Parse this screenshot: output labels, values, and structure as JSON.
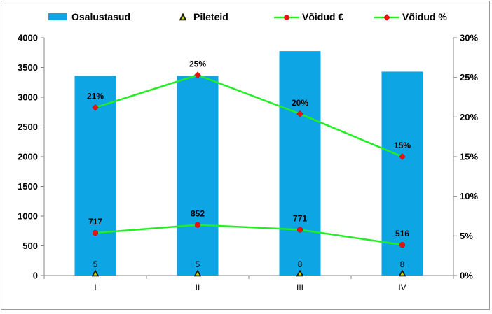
{
  "chart_data": {
    "type": "bar",
    "categories": [
      "I",
      "II",
      "III",
      "IV"
    ],
    "series": [
      {
        "name": "Osalustasud",
        "kind": "bar",
        "axis": "left",
        "color": "#0ea5e4",
        "values": [
          3360,
          3360,
          3775,
          3430
        ]
      },
      {
        "name": "Pileteid",
        "kind": "marker",
        "axis": "left",
        "color": "#000000",
        "values": [
          5,
          5,
          8,
          8
        ]
      },
      {
        "name": "Võidud €",
        "kind": "line",
        "axis": "left",
        "color": "#22ee22",
        "values": [
          717,
          852,
          771,
          516
        ]
      },
      {
        "name": "Võidud %",
        "kind": "line",
        "axis": "right",
        "color": "#22ee22",
        "values": [
          21.2,
          25.3,
          20.4,
          15.0
        ]
      }
    ],
    "point_labels": {
      "Pileteid": [
        "5",
        "5",
        "8",
        "8"
      ],
      "Võidud €": [
        "717",
        "852",
        "771",
        "516"
      ],
      "Võidud %": [
        "21%",
        "25%",
        "20%",
        "15%"
      ]
    },
    "y_left": {
      "min": 0,
      "max": 4000,
      "ticks": [
        "0",
        "500",
        "1000",
        "1500",
        "2000",
        "2500",
        "3000",
        "3500",
        "4000"
      ]
    },
    "y_right": {
      "min": 0,
      "max": 30,
      "ticks": [
        "0%",
        "5%",
        "10%",
        "15%",
        "20%",
        "25%",
        "30%"
      ]
    },
    "legend_position": "top",
    "grid": false
  }
}
